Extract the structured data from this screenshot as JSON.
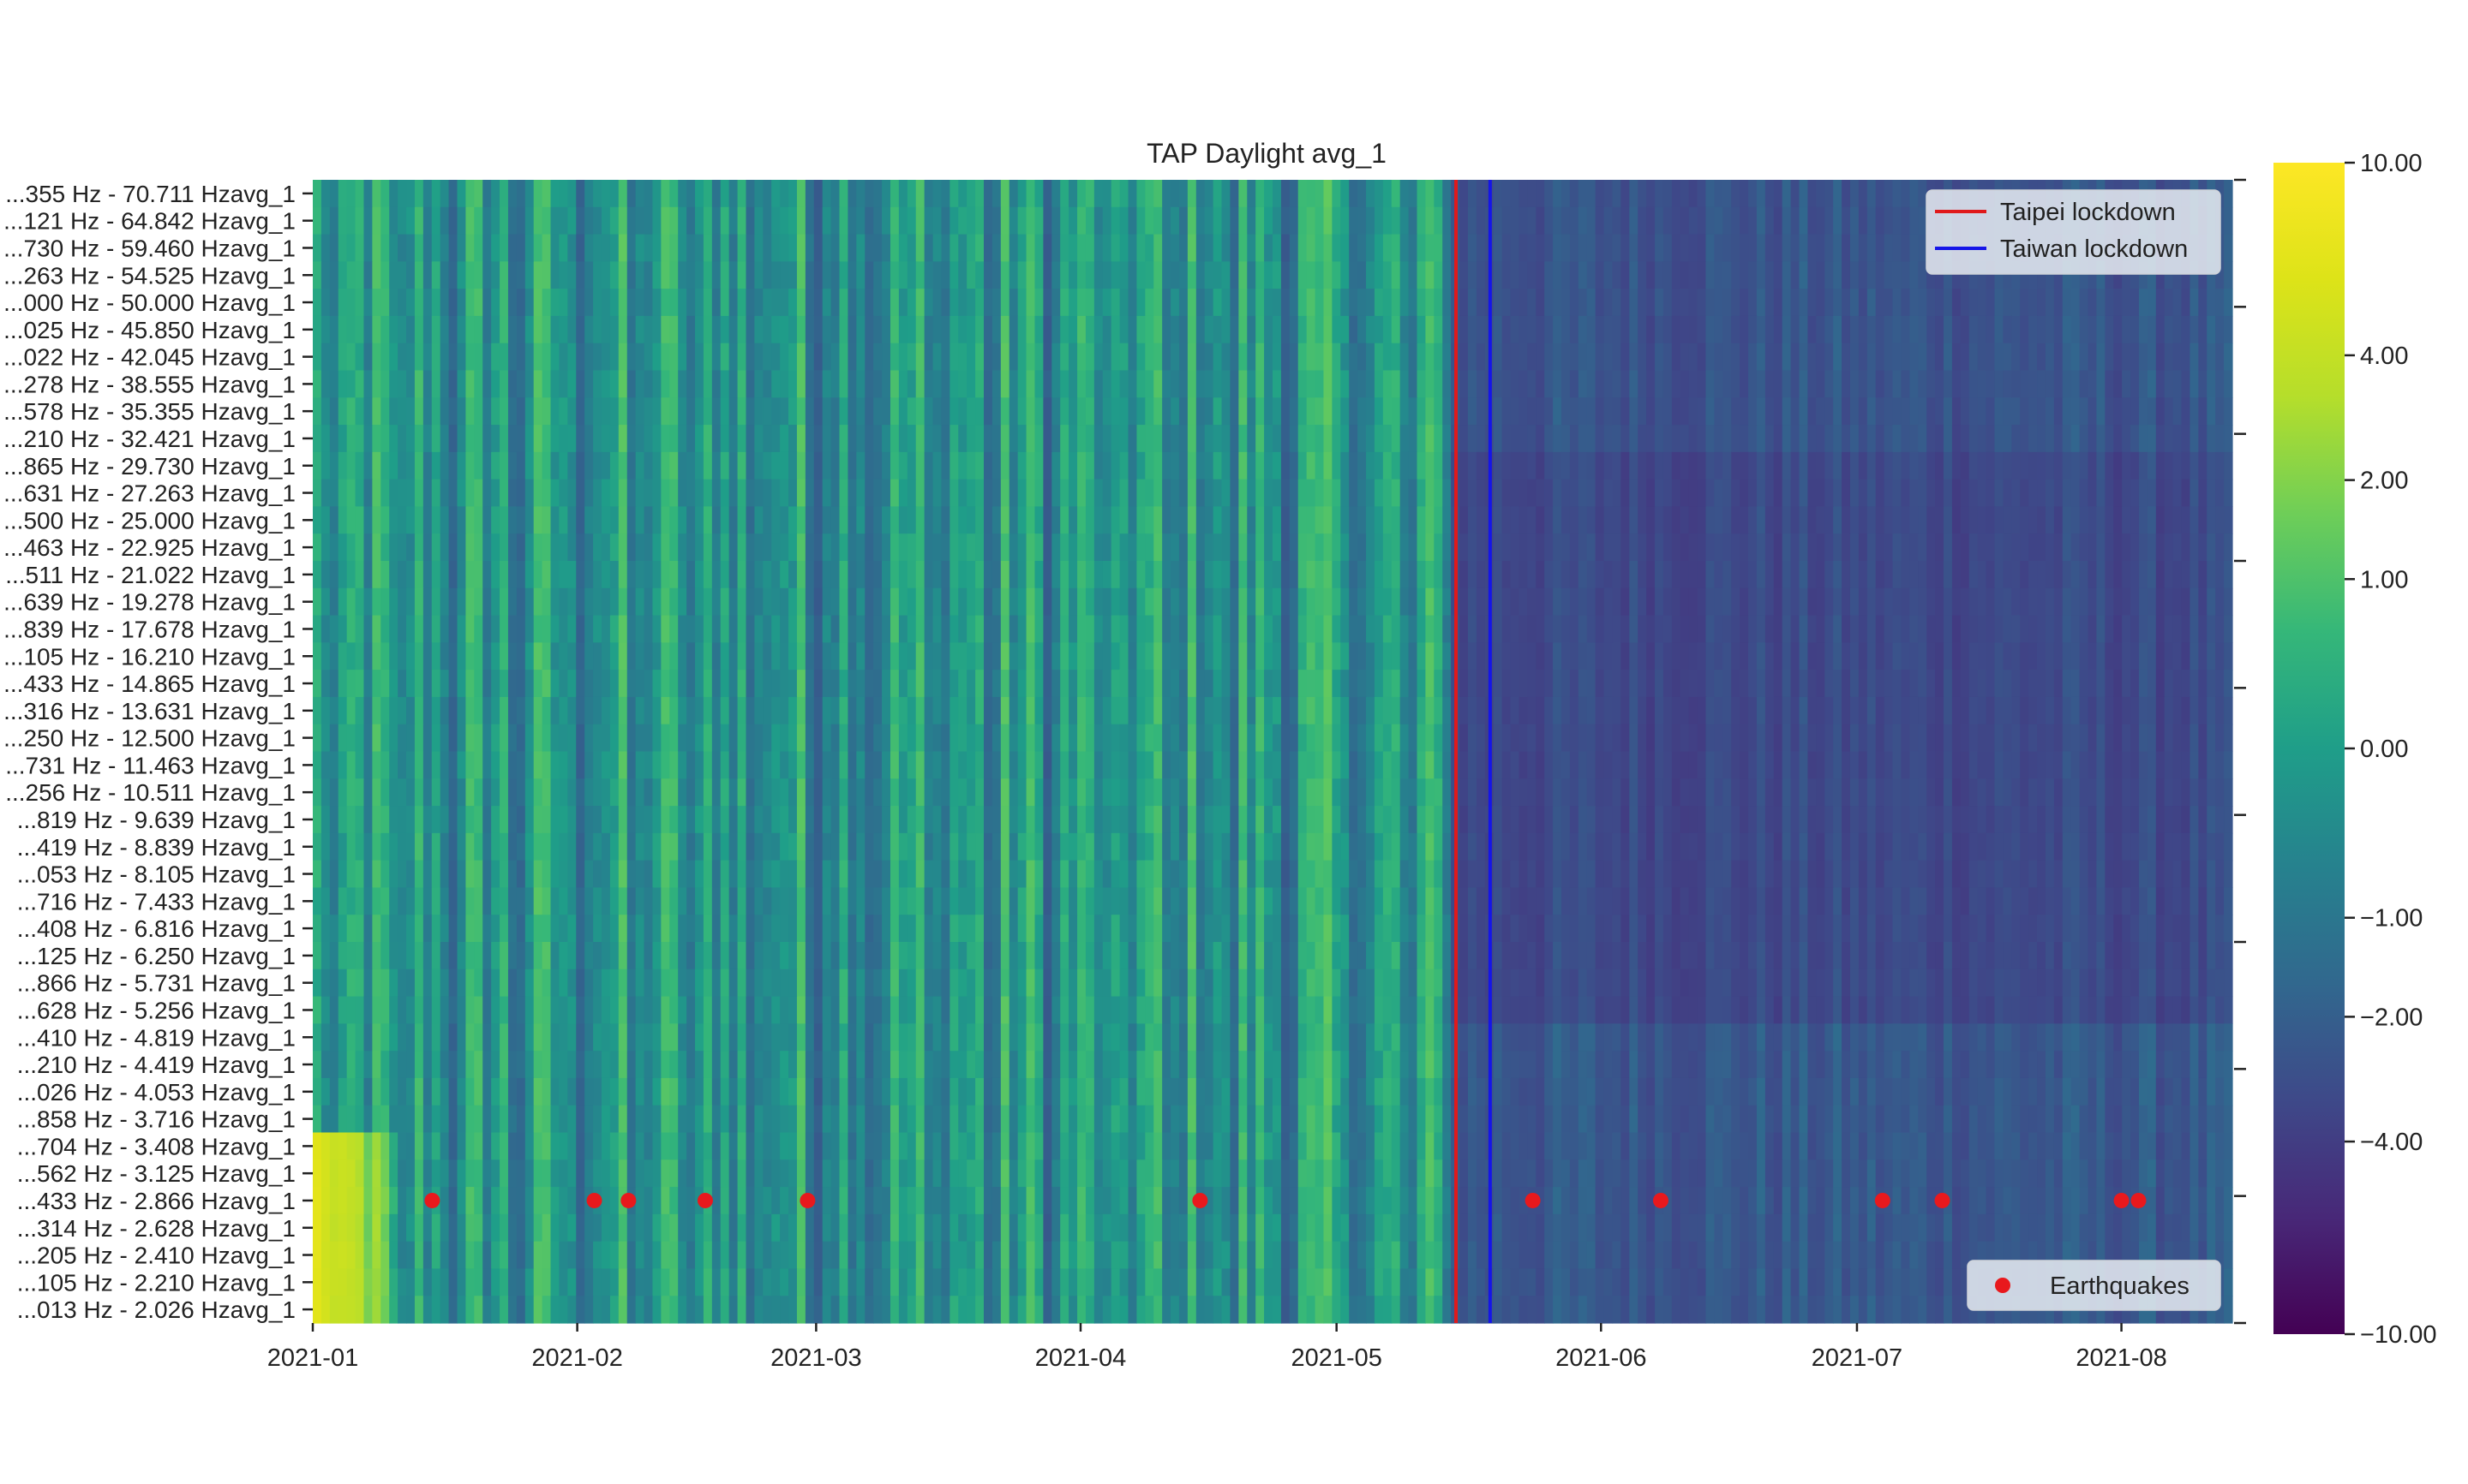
{
  "chart_data": {
    "type": "heatmap",
    "title": "TAP Daylight avg_1",
    "xlabel": "",
    "ylabel": "",
    "x_ticks": [
      "2021-01",
      "2021-02",
      "2021-03",
      "2021-04",
      "2021-05",
      "2021-06",
      "2021-07",
      "2021-08"
    ],
    "x_range": [
      "2021-01-01",
      "2021-08-14"
    ],
    "y_tick_labels": [
      "...355 Hz - 70.711 Hzavg_1",
      "...121 Hz - 64.842 Hzavg_1",
      "...730 Hz - 59.460 Hzavg_1",
      "...263 Hz - 54.525 Hzavg_1",
      "...000 Hz - 50.000 Hzavg_1",
      "...025 Hz - 45.850 Hzavg_1",
      "...022 Hz - 42.045 Hzavg_1",
      "...278 Hz - 38.555 Hzavg_1",
      "...578 Hz - 35.355 Hzavg_1",
      "...210 Hz - 32.421 Hzavg_1",
      "...865 Hz - 29.730 Hzavg_1",
      "...631 Hz - 27.263 Hzavg_1",
      "...500 Hz - 25.000 Hzavg_1",
      "...463 Hz - 22.925 Hzavg_1",
      "...511 Hz - 21.022 Hzavg_1",
      "...639 Hz - 19.278 Hzavg_1",
      "...839 Hz - 17.678 Hzavg_1",
      "...105 Hz - 16.210 Hzavg_1",
      "...433 Hz - 14.865 Hzavg_1",
      "...316 Hz - 13.631 Hzavg_1",
      "...250 Hz - 12.500 Hzavg_1",
      "...731 Hz - 11.463 Hzavg_1",
      "...256 Hz - 10.511 Hzavg_1",
      "...819 Hz - 9.639 Hzavg_1",
      "...419 Hz - 8.839 Hzavg_1",
      "...053 Hz - 8.105 Hzavg_1",
      "...716 Hz - 7.433 Hzavg_1",
      "...408 Hz - 6.816 Hzavg_1",
      "...125 Hz - 6.250 Hzavg_1",
      "...866 Hz - 5.731 Hzavg_1",
      "...628 Hz - 5.256 Hzavg_1",
      "...410 Hz - 4.819 Hzavg_1",
      "...210 Hz - 4.419 Hzavg_1",
      "...026 Hz - 4.053 Hzavg_1",
      "...858 Hz - 3.716 Hzavg_1",
      "...704 Hz - 3.408 Hzavg_1",
      "...562 Hz - 3.125 Hzavg_1",
      "...433 Hz - 2.866 Hzavg_1",
      "...314 Hz - 2.628 Hzavg_1",
      "...205 Hz - 2.410 Hzavg_1",
      "...105 Hz - 2.210 Hzavg_1",
      "...013 Hz - 2.026 Hzavg_1"
    ],
    "colorbar": {
      "colormap": "viridis",
      "range": [
        -10,
        10
      ],
      "scale": "symlog",
      "tick_labels": [
        "10.00",
        "4.00",
        "2.00",
        "1.00",
        "0.00",
        "−1.00",
        "−2.00",
        "−4.00",
        "−10.00"
      ],
      "tick_values": [
        10,
        4,
        2,
        1,
        0,
        -1,
        -2,
        -4,
        -10
      ]
    },
    "vertical_lines": [
      {
        "name": "Taipei lockdown",
        "date": "2021-05-15",
        "color": "#e0191b"
      },
      {
        "name": "Taiwan lockdown",
        "date": "2021-05-19",
        "color": "#1515e8"
      }
    ],
    "earthquakes": {
      "name": "Earthquakes",
      "color": "#e8191d",
      "y_row_label": "...433 Hz - 2.866 Hzavg_1",
      "dates": [
        "2021-01-15",
        "2021-02-03",
        "2021-02-07",
        "2021-02-16",
        "2021-02-28",
        "2021-04-15",
        "2021-05-24",
        "2021-06-08",
        "2021-07-04",
        "2021-07-11",
        "2021-08-01",
        "2021-08-03"
      ]
    },
    "legend_placement": [
      "upper-right",
      "lower-right"
    ],
    "grid": false
  }
}
